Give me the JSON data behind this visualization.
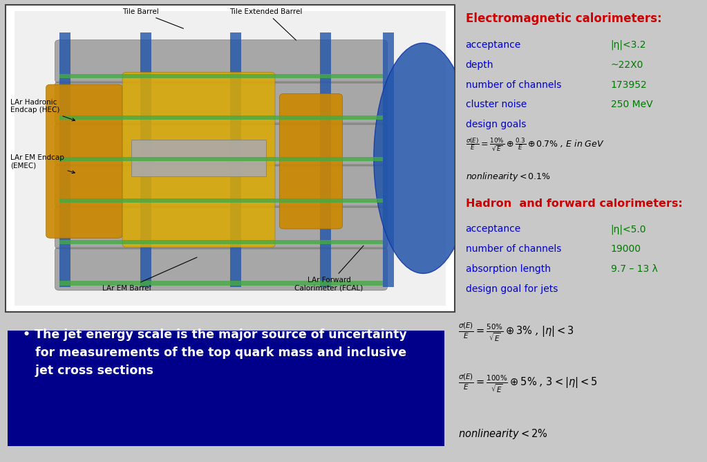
{
  "bg_color": "#c8c8c8",
  "right_bg": "#c8c8c8",
  "em_title": "Electromagnetic calorimeters:",
  "em_title_color": "#cc0000",
  "em_labels": [
    "acceptance",
    "depth",
    "number of channels",
    "cluster noise",
    "design goals"
  ],
  "em_values": [
    "|η|<3.2",
    "~22X0",
    "173952",
    "250 MeV",
    ""
  ],
  "em_label_color": "#0000cc",
  "em_value_color": "#007700",
  "had_title": "Hadron  and forward calorimeters:",
  "had_title_color": "#cc0000",
  "had_labels": [
    "acceptance",
    "number of channels",
    "absorption length",
    "design goal for jets"
  ],
  "had_values": [
    "|η|<5.0",
    "19000",
    "9.7 – 13 λ",
    ""
  ],
  "had_label_color": "#0000cc",
  "had_value_color": "#007700",
  "bullet_box_color": "#00008B",
  "bullet_text_color": "#ffffff",
  "img_border_color": "#444444",
  "label_color_black": "#000000"
}
